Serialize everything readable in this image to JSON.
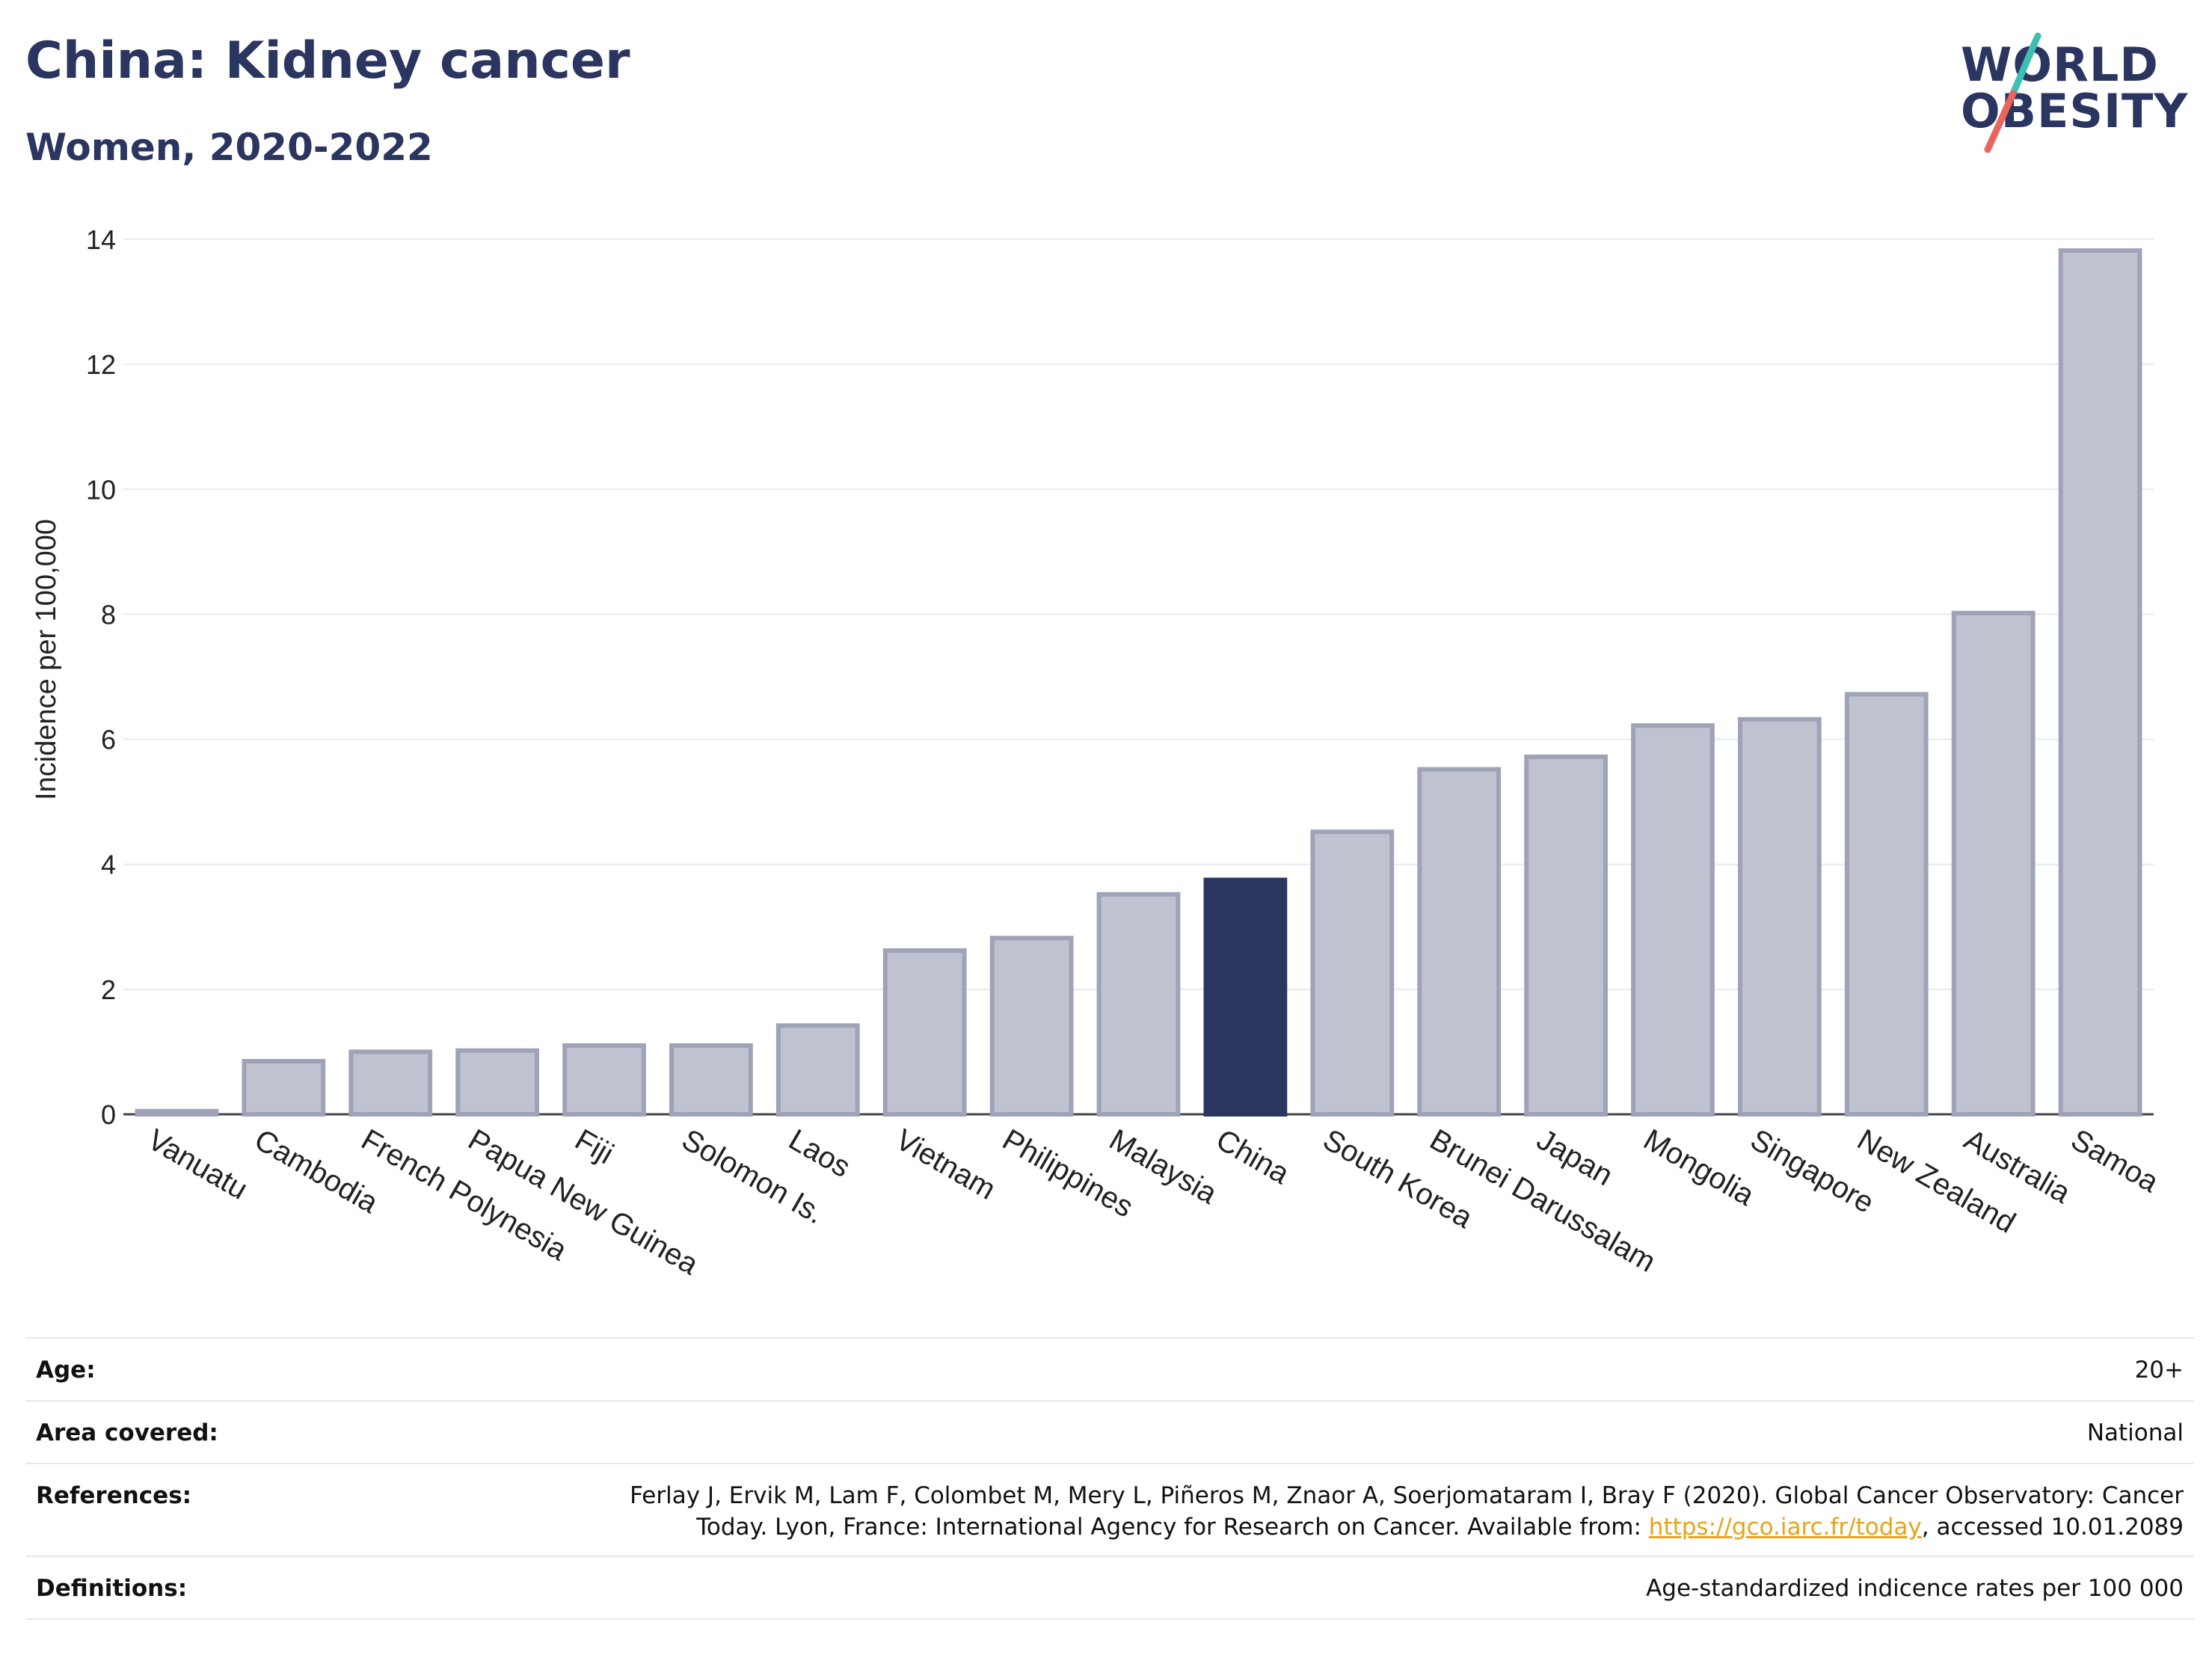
{
  "header": {
    "title": "China: Kidney cancer",
    "subtitle": "Women, 2020-2022",
    "logo_line1": "WORLD",
    "logo_line2": "OBESITY"
  },
  "colors": {
    "highlight": "#2a3560",
    "bar_fill": "#bfc2cf",
    "bar_stroke": "#9ea3b8",
    "grid": "#e8e9ef",
    "logo_teal": "#3fbfb1",
    "logo_coral": "#e8665a"
  },
  "chart_data": {
    "type": "bar",
    "title": "China: Kidney cancer",
    "subtitle": "Women, 2020-2022",
    "xlabel": "",
    "ylabel": "Incidence per 100,000",
    "ylim": [
      0,
      14
    ],
    "yticks": [
      0,
      2,
      4,
      6,
      8,
      10,
      12,
      14
    ],
    "grid": true,
    "highlight_category": "China",
    "categories": [
      "Vanuatu",
      "Cambodia",
      "French Polynesia",
      "Papua New Guinea",
      "Fiji",
      "Solomon Is.",
      "Laos",
      "Vietnam",
      "Philippines",
      "Malaysia",
      "China",
      "South Korea",
      "Brunei Darussalam",
      "Japan",
      "Mongolia",
      "Singapore",
      "New Zealand",
      "Australia",
      "Samoa"
    ],
    "values": [
      0.05,
      0.85,
      1.0,
      1.02,
      1.1,
      1.1,
      1.42,
      2.62,
      2.82,
      3.52,
      3.75,
      4.52,
      5.52,
      5.72,
      6.22,
      6.32,
      6.72,
      8.02,
      13.82
    ]
  },
  "footer": {
    "rows": [
      {
        "label": "Age:",
        "value": "20+"
      },
      {
        "label": "Area covered:",
        "value": "National"
      },
      {
        "label": "References:",
        "value_line1": "Ferlay J, Ervik M, Lam F, Colombet M, Mery L, Piñeros M, Znaor A, Soerjomataram I, Bray F (2020). Global Cancer Observatory: Cancer",
        "value_line2_pre": "Today. Lyon, France: International Agency for Research on Cancer. Available from: ",
        "value_link": "https://gco.iarc.fr/today",
        "value_line2_post": ", accessed 10.01.2089"
      },
      {
        "label": "Definitions:",
        "value": "Age-standardized indicence rates per 100 000"
      }
    ]
  }
}
